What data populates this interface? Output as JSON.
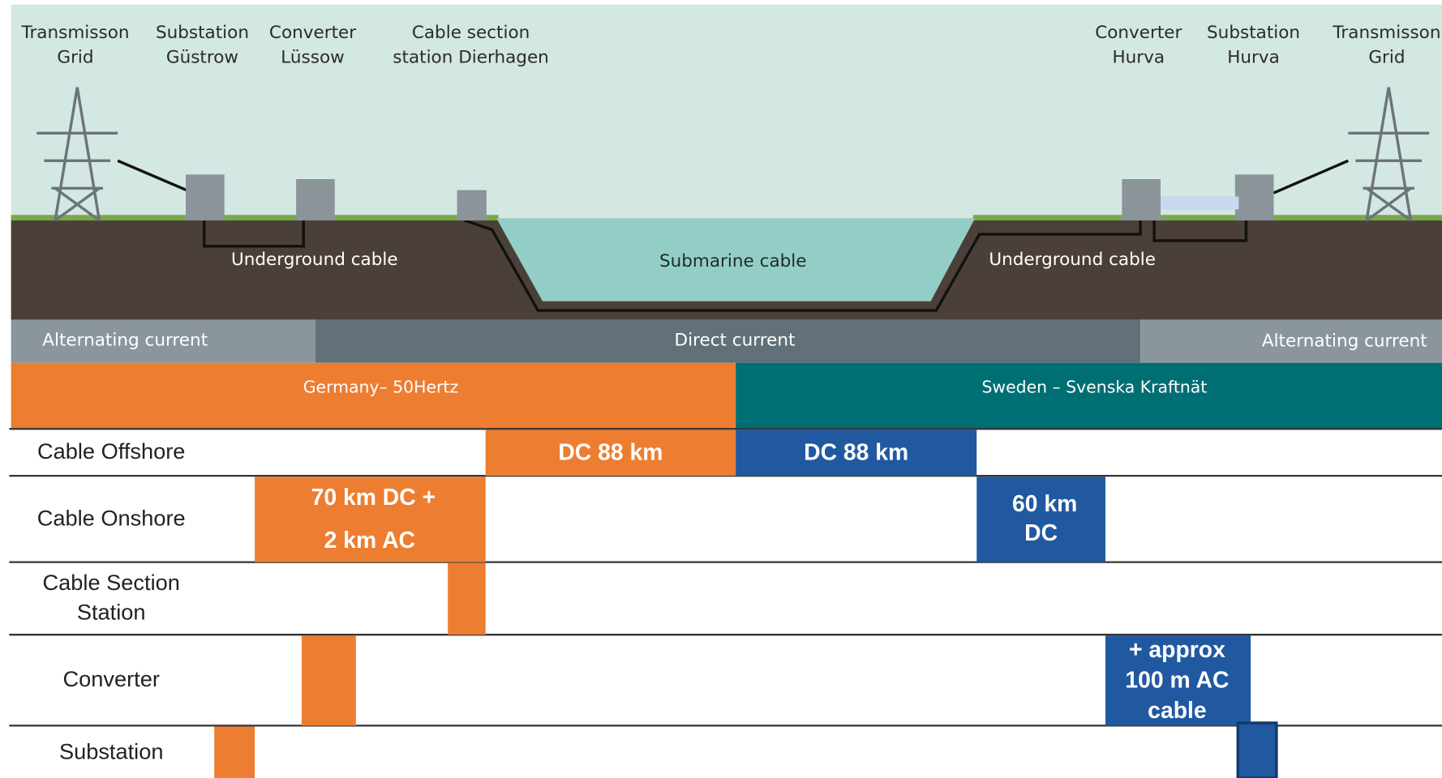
{
  "stations": [
    [
      "Transmisson",
      "Grid"
    ],
    [
      "Substation",
      "Güstrow"
    ],
    [
      "Converter",
      "Lüssow"
    ],
    [
      "Cable section",
      "station Dierhagen"
    ],
    [
      "Converter",
      "Hurva"
    ],
    [
      "Substation",
      "Hurva"
    ],
    [
      "Transmisson",
      "Grid"
    ]
  ],
  "cable_labels": [
    "Underground cable",
    "Submarine cable",
    "Underground cable"
  ],
  "current_labels": [
    "Alternating current",
    "Direct current",
    "Alternating current"
  ],
  "operators": [
    "Germany– 50Hertz",
    "Sweden – Svenska Kraftnät"
  ],
  "table": {
    "rows": [
      {
        "label": [
          "Cable Offshore"
        ],
        "bars": [
          [
            "DC 88 km"
          ],
          [
            "DC 88 km"
          ]
        ]
      },
      {
        "label": [
          "Cable Onshore"
        ],
        "bars": [
          [
            "70 km DC +",
            "2 km AC"
          ],
          [
            "60 km",
            "DC"
          ]
        ]
      },
      {
        "label": [
          "Cable Section",
          "Station"
        ]
      },
      {
        "label": [
          "Converter"
        ],
        "bars": [
          [
            "+ approx",
            "100 m AC",
            "cable"
          ]
        ]
      },
      {
        "label": [
          "Substation"
        ]
      }
    ]
  }
}
